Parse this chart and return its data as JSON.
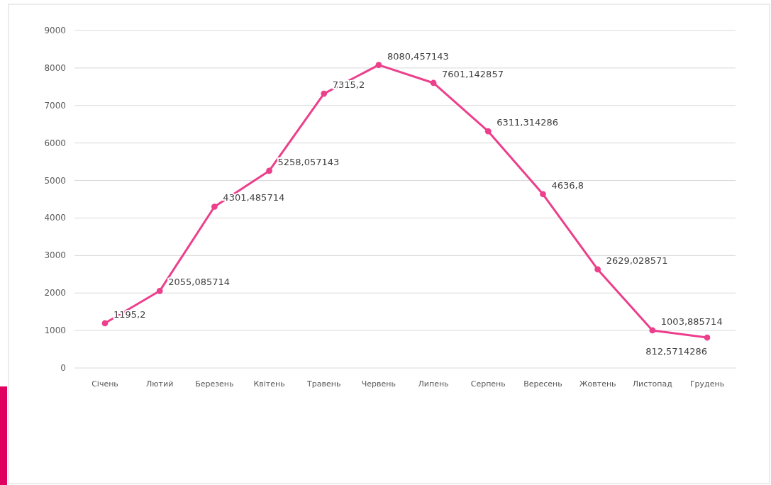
{
  "chart_data": {
    "type": "line",
    "categories": [
      "Січень",
      "Лютий",
      "Березень",
      "Квітень",
      "Травень",
      "Червень",
      "Липень",
      "Серпень",
      "Вересень",
      "Жовтень",
      "Листопад",
      "Грудень"
    ],
    "series": [
      {
        "color": "#ec3f8c",
        "values": [
          1195.2,
          2055.085714,
          4301.485714,
          5258.057143,
          7315.2,
          8080.457143,
          7601.142857,
          6311.314286,
          4636.8,
          2629.028571,
          1003.885714,
          812.5714286
        ],
        "value_labels": [
          "1195,2",
          "2055,085714",
          "4301,485714",
          "5258,057143",
          "7315,2",
          "8080,457143",
          "7601,142857",
          "6311,314286",
          "4636,8",
          "2629,028571",
          "1003,885714",
          "812,5714286"
        ]
      }
    ],
    "ylim": [
      0,
      9000
    ],
    "yticks": [
      0,
      1000,
      2000,
      3000,
      4000,
      5000,
      6000,
      7000,
      8000,
      9000
    ],
    "grid": "y",
    "marker": "circle",
    "line_style": "solid"
  }
}
